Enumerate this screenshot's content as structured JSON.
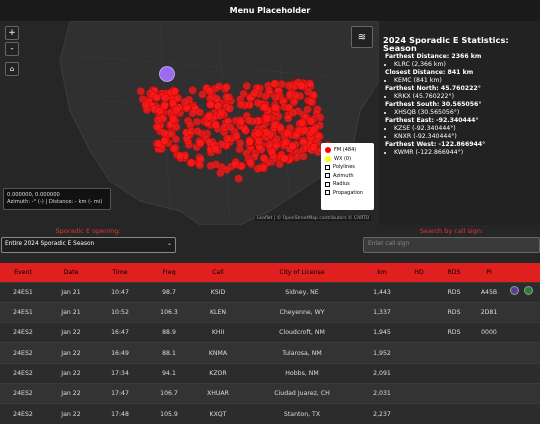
{
  "header": {
    "title": "Menu Placeholder"
  },
  "map": {
    "zoom_in": "+",
    "zoom_out": "-",
    "legend": {
      "fm": "FM (484)",
      "wx": "WX (0)",
      "checkboxes": [
        "Polylines",
        "Azimuth",
        "Radius",
        "Propagation"
      ]
    },
    "coords": "0.000000, 0.000000",
    "azimuth": "Azimuth: -° (-) | Distance: - km (- mi)",
    "attribution": "Leaflet | © OpenStreetMap contributors © CARTO"
  },
  "stats": {
    "title": "2024 Sporadic E Statistics: Season",
    "groups": [
      {
        "label": "Farthest Distance: 2366 km",
        "items": [
          "KLRC (2,366 km)"
        ]
      },
      {
        "label": "Closest Distance: 841 km",
        "items": [
          "KEMC (841 km)"
        ]
      },
      {
        "label": "Farthest North: 45.760222°",
        "items": [
          "KRKX (45.760222°)"
        ]
      },
      {
        "label": "Farthest South: 30.565056°",
        "items": [
          "XHSQB (30.565056°)"
        ]
      },
      {
        "label": "Farthest East: -92.340444°",
        "items": [
          "KZSE (-92.340444°)",
          "KNXR (-92.340444°)"
        ]
      },
      {
        "label": "Farthest West: -122.866944°",
        "items": [
          "KWMR (-122.866944°)"
        ]
      }
    ]
  },
  "filters": {
    "opening_label": "Sporadic E opening:",
    "opening_value": "Entire 2024 Sporadic E Season",
    "search_label": "Search by call sign:",
    "search_placeholder": "Enter call sign"
  },
  "table": {
    "headers": [
      "Event",
      "Date",
      "Time",
      "Freq",
      "Call",
      "City of License",
      "km",
      "HD",
      "RDS",
      "PI"
    ],
    "rows": [
      [
        "24ES1",
        "Jan 21",
        "10:47",
        "98.7",
        "KSID",
        "Sidney, NE",
        "1,443",
        "",
        "RDS",
        "A45B"
      ],
      [
        "24ES1",
        "Jan 21",
        "10:52",
        "106.3",
        "KLEN",
        "Cheyenne, WY",
        "1,337",
        "",
        "RDS",
        "2D81"
      ],
      [
        "24ES2",
        "Jan 22",
        "16:47",
        "88.9",
        "KHII",
        "Cloudcroft, NM",
        "1,945",
        "",
        "RDS",
        "0000"
      ],
      [
        "24ES2",
        "Jan 22",
        "16:49",
        "88.1",
        "KNMA",
        "Tularosa, NM",
        "1,952",
        "",
        "",
        ""
      ],
      [
        "24ES2",
        "Jan 22",
        "17:34",
        "94.1",
        "KZOR",
        "Hobbs, NM",
        "2,091",
        "",
        "",
        ""
      ],
      [
        "24ES2",
        "Jan 22",
        "17:47",
        "106.7",
        "XHUAR",
        "Ciudad Juarez, CH",
        "2,031",
        "",
        "",
        ""
      ],
      [
        "24ES2",
        "Jan 22",
        "17:48",
        "105.9",
        "KXQT",
        "Stanton, TX",
        "2,237",
        "",
        "",
        ""
      ]
    ]
  }
}
